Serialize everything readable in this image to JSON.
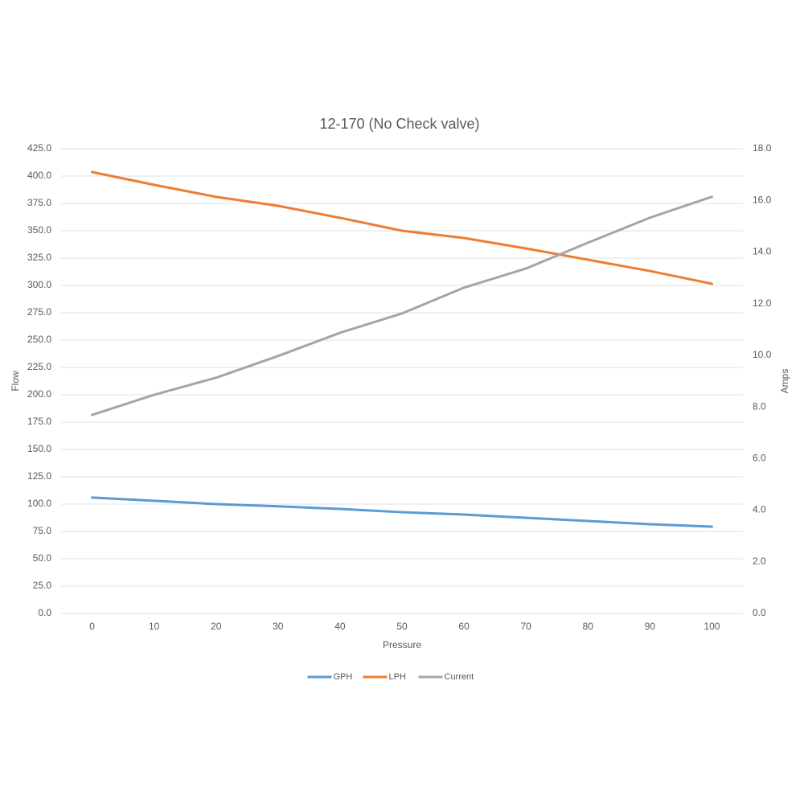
{
  "chart_data": {
    "type": "line",
    "title": "12-170 (No Check valve)",
    "x_label": "Pressure",
    "y_label": "Flow",
    "y2_label": "Amps",
    "categories": [
      0,
      10,
      20,
      30,
      40,
      50,
      60,
      70,
      80,
      90,
      100
    ],
    "series": [
      {
        "name": "GPH",
        "color": "#5b9bd5",
        "values": [
          106,
          103,
          100,
          98,
          95.6,
          92.6,
          90.4,
          87.5,
          84.6,
          81.6,
          79.4
        ]
      },
      {
        "name": "LPH",
        "color": "#ed7d31",
        "values": [
          403.7,
          392,
          381,
          372.8,
          361.8,
          350,
          343.4,
          333.8,
          323.5,
          313.2,
          301.5
        ]
      },
      {
        "name": "Current",
        "color": "#a5a5a5",
        "axis": "y2",
        "values": [
          7.69,
          8.47,
          9.13,
          9.97,
          10.87,
          11.62,
          12.62,
          13.36,
          14.36,
          15.33,
          16.14
        ]
      }
    ],
    "ylim": [
      0,
      425
    ],
    "yticks": [
      {
        "value": 0,
        "label": "0.0"
      },
      {
        "value": 25,
        "label": "25.0"
      },
      {
        "value": 50,
        "label": "50.0"
      },
      {
        "value": 75,
        "label": "75.0"
      },
      {
        "value": 100,
        "label": "100.0"
      },
      {
        "value": 125,
        "label": "125.0"
      },
      {
        "value": 150,
        "label": "150.0"
      },
      {
        "value": 175,
        "label": "175.0"
      },
      {
        "value": 200,
        "label": "200.0"
      },
      {
        "value": 225,
        "label": "225.0"
      },
      {
        "value": 250,
        "label": "250.0"
      },
      {
        "value": 275,
        "label": "275.0"
      },
      {
        "value": 300,
        "label": "300.0"
      },
      {
        "value": 325,
        "label": "325.0"
      },
      {
        "value": 350,
        "label": "350.0"
      },
      {
        "value": 375,
        "label": "375.0"
      },
      {
        "value": 400,
        "label": "400.0"
      },
      {
        "value": 425,
        "label": "425.0"
      }
    ],
    "y2lim": [
      0,
      18
    ],
    "y2ticks": [
      {
        "value": 0,
        "label": "0.0"
      },
      {
        "value": 2,
        "label": "2.0"
      },
      {
        "value": 4,
        "label": "4.0"
      },
      {
        "value": 6,
        "label": "6.0"
      },
      {
        "value": 8,
        "label": "8.0"
      },
      {
        "value": 10,
        "label": "10.0"
      },
      {
        "value": 12,
        "label": "12.0"
      },
      {
        "value": 14,
        "label": "14.0"
      },
      {
        "value": 16,
        "label": "16.0"
      },
      {
        "value": 18,
        "label": "18.0"
      }
    ],
    "grid": true,
    "legend": "bottom"
  }
}
